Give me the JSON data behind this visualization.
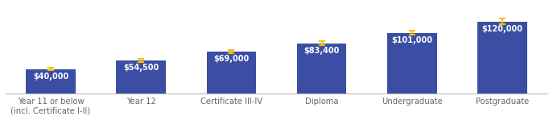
{
  "categories": [
    "Year 11 or below\n(incl. Certificate I-II)",
    "Year 12",
    "Certificate III-IV",
    "Diploma",
    "Undergraduate",
    "Postgraduate"
  ],
  "values": [
    40000,
    54500,
    69000,
    83400,
    101000,
    120000
  ],
  "error_low": [
    2000,
    2500,
    2500,
    3000,
    3500,
    5000
  ],
  "error_high": [
    2000,
    2500,
    2500,
    3000,
    3500,
    5000
  ],
  "bar_color": "#3A4FA3",
  "error_color": "#FFC000",
  "label_color": "#FFFFFF",
  "label_fontsize": 7.0,
  "tick_fontsize": 7.2,
  "tick_color": "#666666",
  "background_color": "#FFFFFF",
  "bar_width": 0.55,
  "ylim": [
    0,
    138000
  ]
}
